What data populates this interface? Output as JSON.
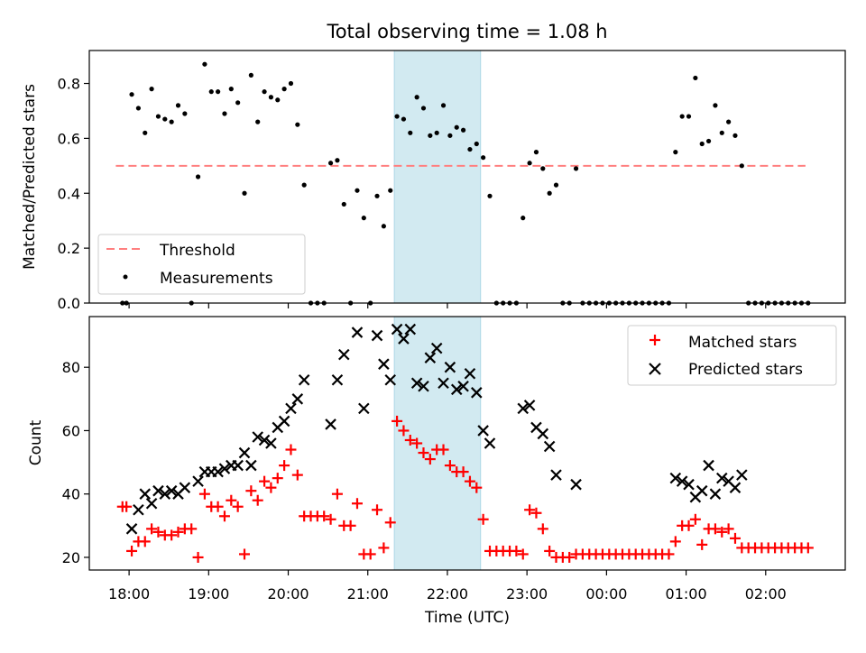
{
  "title": "Total observing time = 1.08 h",
  "colors": {
    "threshold": "#ff7f7f",
    "measurement": "#000000",
    "matched": "#ff0000",
    "predicted": "#000000",
    "highlight": "#add8e6"
  },
  "chart_data": [
    {
      "type": "scatter",
      "ylabel": "Matched/Predicted stars",
      "ylim": [
        0,
        0.92
      ],
      "yticks": [
        "0.0",
        "0.2",
        "0.4",
        "0.6",
        "0.8"
      ],
      "threshold": 0.5,
      "threshold_range": [
        "17:50",
        "02:30"
      ],
      "legend": {
        "placement": "lower-left",
        "entries": [
          "Threshold",
          "Measurements"
        ]
      },
      "highlight_range": [
        "21:20",
        "22:25"
      ],
      "measurements": [
        [
          "17:55",
          0.0
        ],
        [
          "17:58",
          0.0
        ],
        [
          "18:02",
          0.76
        ],
        [
          "18:07",
          0.71
        ],
        [
          "18:12",
          0.62
        ],
        [
          "18:17",
          0.78
        ],
        [
          "18:22",
          0.68
        ],
        [
          "18:27",
          0.67
        ],
        [
          "18:32",
          0.66
        ],
        [
          "18:37",
          0.72
        ],
        [
          "18:42",
          0.69
        ],
        [
          "18:47",
          0.0
        ],
        [
          "18:52",
          0.46
        ],
        [
          "18:57",
          0.87
        ],
        [
          "19:02",
          0.77
        ],
        [
          "19:07",
          0.77
        ],
        [
          "19:12",
          0.69
        ],
        [
          "19:17",
          0.78
        ],
        [
          "19:22",
          0.73
        ],
        [
          "19:27",
          0.4
        ],
        [
          "19:32",
          0.83
        ],
        [
          "19:37",
          0.66
        ],
        [
          "19:42",
          0.77
        ],
        [
          "19:47",
          0.75
        ],
        [
          "19:52",
          0.74
        ],
        [
          "19:57",
          0.78
        ],
        [
          "20:02",
          0.8
        ],
        [
          "20:07",
          0.65
        ],
        [
          "20:12",
          0.43
        ],
        [
          "20:17",
          0.0
        ],
        [
          "20:22",
          0.0
        ],
        [
          "20:27",
          0.0
        ],
        [
          "20:32",
          0.51
        ],
        [
          "20:37",
          0.52
        ],
        [
          "20:42",
          0.36
        ],
        [
          "20:47",
          0.0
        ],
        [
          "20:52",
          0.41
        ],
        [
          "20:57",
          0.31
        ],
        [
          "21:02",
          0.0
        ],
        [
          "21:07",
          0.39
        ],
        [
          "21:12",
          0.28
        ],
        [
          "21:17",
          0.41
        ],
        [
          "21:22",
          0.68
        ],
        [
          "21:27",
          0.67
        ],
        [
          "21:32",
          0.62
        ],
        [
          "21:37",
          0.75
        ],
        [
          "21:42",
          0.71
        ],
        [
          "21:47",
          0.61
        ],
        [
          "21:52",
          0.62
        ],
        [
          "21:57",
          0.72
        ],
        [
          "22:02",
          0.61
        ],
        [
          "22:07",
          0.64
        ],
        [
          "22:12",
          0.63
        ],
        [
          "22:17",
          0.56
        ],
        [
          "22:22",
          0.58
        ],
        [
          "22:27",
          0.53
        ],
        [
          "22:32",
          0.39
        ],
        [
          "22:37",
          0.0
        ],
        [
          "22:42",
          0.0
        ],
        [
          "22:47",
          0.0
        ],
        [
          "22:52",
          0.0
        ],
        [
          "22:57",
          0.31
        ],
        [
          "23:02",
          0.51
        ],
        [
          "23:07",
          0.55
        ],
        [
          "23:12",
          0.49
        ],
        [
          "23:17",
          0.4
        ],
        [
          "23:22",
          0.43
        ],
        [
          "23:27",
          0.0
        ],
        [
          "23:32",
          0.0
        ],
        [
          "23:37",
          0.49
        ],
        [
          "23:42",
          0.0
        ],
        [
          "23:47",
          0.0
        ],
        [
          "23:52",
          0.0
        ],
        [
          "23:57",
          0.0
        ],
        [
          "00:02",
          0.0
        ],
        [
          "00:07",
          0.0
        ],
        [
          "00:12",
          0.0
        ],
        [
          "00:17",
          0.0
        ],
        [
          "00:22",
          0.0
        ],
        [
          "00:27",
          0.0
        ],
        [
          "00:32",
          0.0
        ],
        [
          "00:37",
          0.0
        ],
        [
          "00:42",
          0.0
        ],
        [
          "00:47",
          0.0
        ],
        [
          "00:52",
          0.55
        ],
        [
          "00:57",
          0.68
        ],
        [
          "01:02",
          0.68
        ],
        [
          "01:07",
          0.82
        ],
        [
          "01:12",
          0.58
        ],
        [
          "01:17",
          0.59
        ],
        [
          "01:22",
          0.72
        ],
        [
          "01:27",
          0.62
        ],
        [
          "01:32",
          0.66
        ],
        [
          "01:37",
          0.61
        ],
        [
          "01:42",
          0.5
        ],
        [
          "01:47",
          0.0
        ],
        [
          "01:52",
          0.0
        ],
        [
          "01:57",
          0.0
        ],
        [
          "02:02",
          0.0
        ],
        [
          "02:07",
          0.0
        ],
        [
          "02:12",
          0.0
        ],
        [
          "02:17",
          0.0
        ],
        [
          "02:22",
          0.0
        ],
        [
          "02:27",
          0.0
        ],
        [
          "02:32",
          0.0
        ]
      ]
    },
    {
      "type": "scatter",
      "xlabel": "Time (UTC)",
      "ylabel": "Count",
      "ylim": [
        16,
        96
      ],
      "yticks": [
        "20",
        "40",
        "60",
        "80"
      ],
      "xticks": [
        "18:00",
        "19:00",
        "20:00",
        "21:00",
        "22:00",
        "23:00",
        "00:00",
        "01:00",
        "02:00"
      ],
      "xlim": [
        "17:30",
        "03:00"
      ],
      "legend": {
        "placement": "upper-right",
        "entries": [
          "Matched stars",
          "Predicted stars"
        ]
      },
      "highlight_range": [
        "21:20",
        "22:25"
      ],
      "matched": [
        [
          "17:55",
          36
        ],
        [
          "17:58",
          36
        ],
        [
          "18:02",
          22
        ],
        [
          "18:07",
          25
        ],
        [
          "18:12",
          25
        ],
        [
          "18:17",
          29
        ],
        [
          "18:22",
          28
        ],
        [
          "18:27",
          27
        ],
        [
          "18:32",
          27
        ],
        [
          "18:37",
          28
        ],
        [
          "18:42",
          29
        ],
        [
          "18:47",
          29
        ],
        [
          "18:52",
          20
        ],
        [
          "18:57",
          40
        ],
        [
          "19:02",
          36
        ],
        [
          "19:07",
          36
        ],
        [
          "19:12",
          33
        ],
        [
          "19:17",
          38
        ],
        [
          "19:22",
          36
        ],
        [
          "19:27",
          21
        ],
        [
          "19:32",
          41
        ],
        [
          "19:37",
          38
        ],
        [
          "19:42",
          44
        ],
        [
          "19:47",
          42
        ],
        [
          "19:52",
          45
        ],
        [
          "19:57",
          49
        ],
        [
          "20:02",
          54
        ],
        [
          "20:07",
          46
        ],
        [
          "20:12",
          33
        ],
        [
          "20:17",
          33
        ],
        [
          "20:22",
          33
        ],
        [
          "20:27",
          33
        ],
        [
          "20:32",
          32
        ],
        [
          "20:37",
          40
        ],
        [
          "20:42",
          30
        ],
        [
          "20:47",
          30
        ],
        [
          "20:52",
          37
        ],
        [
          "20:57",
          21
        ],
        [
          "21:02",
          21
        ],
        [
          "21:07",
          35
        ],
        [
          "21:12",
          23
        ],
        [
          "21:17",
          31
        ],
        [
          "21:22",
          63
        ],
        [
          "21:27",
          60
        ],
        [
          "21:32",
          57
        ],
        [
          "21:37",
          56
        ],
        [
          "21:42",
          53
        ],
        [
          "21:47",
          51
        ],
        [
          "21:52",
          54
        ],
        [
          "21:57",
          54
        ],
        [
          "22:02",
          49
        ],
        [
          "22:07",
          47
        ],
        [
          "22:12",
          47
        ],
        [
          "22:17",
          44
        ],
        [
          "22:22",
          42
        ],
        [
          "22:27",
          32
        ],
        [
          "22:32",
          22
        ],
        [
          "22:37",
          22
        ],
        [
          "22:42",
          22
        ],
        [
          "22:47",
          22
        ],
        [
          "22:52",
          22
        ],
        [
          "22:57",
          21
        ],
        [
          "23:02",
          35
        ],
        [
          "23:07",
          34
        ],
        [
          "23:12",
          29
        ],
        [
          "23:17",
          22
        ],
        [
          "23:22",
          20
        ],
        [
          "23:27",
          20
        ],
        [
          "23:32",
          20
        ],
        [
          "23:37",
          21
        ],
        [
          "23:42",
          21
        ],
        [
          "23:47",
          21
        ],
        [
          "23:52",
          21
        ],
        [
          "23:57",
          21
        ],
        [
          "00:02",
          21
        ],
        [
          "00:07",
          21
        ],
        [
          "00:12",
          21
        ],
        [
          "00:17",
          21
        ],
        [
          "00:22",
          21
        ],
        [
          "00:27",
          21
        ],
        [
          "00:32",
          21
        ],
        [
          "00:37",
          21
        ],
        [
          "00:42",
          21
        ],
        [
          "00:47",
          21
        ],
        [
          "00:52",
          25
        ],
        [
          "00:57",
          30
        ],
        [
          "01:02",
          30
        ],
        [
          "01:07",
          32
        ],
        [
          "01:12",
          24
        ],
        [
          "01:17",
          29
        ],
        [
          "01:22",
          29
        ],
        [
          "01:27",
          28
        ],
        [
          "01:32",
          29
        ],
        [
          "01:37",
          26
        ],
        [
          "01:42",
          23
        ],
        [
          "01:47",
          23
        ],
        [
          "01:52",
          23
        ],
        [
          "01:57",
          23
        ],
        [
          "02:02",
          23
        ],
        [
          "02:07",
          23
        ],
        [
          "02:12",
          23
        ],
        [
          "02:17",
          23
        ],
        [
          "02:22",
          23
        ],
        [
          "02:27",
          23
        ],
        [
          "02:32",
          23
        ]
      ],
      "predicted": [
        [
          "18:02",
          29
        ],
        [
          "18:07",
          35
        ],
        [
          "18:12",
          40
        ],
        [
          "18:17",
          37
        ],
        [
          "18:22",
          41
        ],
        [
          "18:27",
          40
        ],
        [
          "18:32",
          41
        ],
        [
          "18:37",
          40
        ],
        [
          "18:42",
          42
        ],
        [
          "18:52",
          44
        ],
        [
          "18:57",
          47
        ],
        [
          "19:02",
          47
        ],
        [
          "19:07",
          47
        ],
        [
          "19:12",
          48
        ],
        [
          "19:17",
          49
        ],
        [
          "19:22",
          49
        ],
        [
          "19:27",
          53
        ],
        [
          "19:32",
          49
        ],
        [
          "19:37",
          58
        ],
        [
          "19:42",
          57
        ],
        [
          "19:47",
          56
        ],
        [
          "19:52",
          61
        ],
        [
          "19:57",
          63
        ],
        [
          "20:02",
          67
        ],
        [
          "20:07",
          70
        ],
        [
          "20:12",
          76
        ],
        [
          "20:32",
          62
        ],
        [
          "20:37",
          76
        ],
        [
          "20:42",
          84
        ],
        [
          "20:52",
          91
        ],
        [
          "20:57",
          67
        ],
        [
          "21:07",
          90
        ],
        [
          "21:12",
          81
        ],
        [
          "21:17",
          76
        ],
        [
          "21:22",
          92
        ],
        [
          "21:27",
          89
        ],
        [
          "21:32",
          92
        ],
        [
          "21:37",
          75
        ],
        [
          "21:42",
          74
        ],
        [
          "21:47",
          83
        ],
        [
          "21:52",
          86
        ],
        [
          "21:57",
          75
        ],
        [
          "22:02",
          80
        ],
        [
          "22:07",
          73
        ],
        [
          "22:12",
          74
        ],
        [
          "22:17",
          78
        ],
        [
          "22:22",
          72
        ],
        [
          "22:27",
          60
        ],
        [
          "22:32",
          56
        ],
        [
          "22:57",
          67
        ],
        [
          "23:02",
          68
        ],
        [
          "23:07",
          61
        ],
        [
          "23:12",
          59
        ],
        [
          "23:17",
          55
        ],
        [
          "23:22",
          46
        ],
        [
          "23:37",
          43
        ],
        [
          "00:52",
          45
        ],
        [
          "00:57",
          44
        ],
        [
          "01:02",
          43
        ],
        [
          "01:07",
          39
        ],
        [
          "01:12",
          41
        ],
        [
          "01:17",
          49
        ],
        [
          "01:22",
          40
        ],
        [
          "01:27",
          45
        ],
        [
          "01:32",
          44
        ],
        [
          "01:37",
          42
        ],
        [
          "01:42",
          46
        ]
      ]
    }
  ]
}
